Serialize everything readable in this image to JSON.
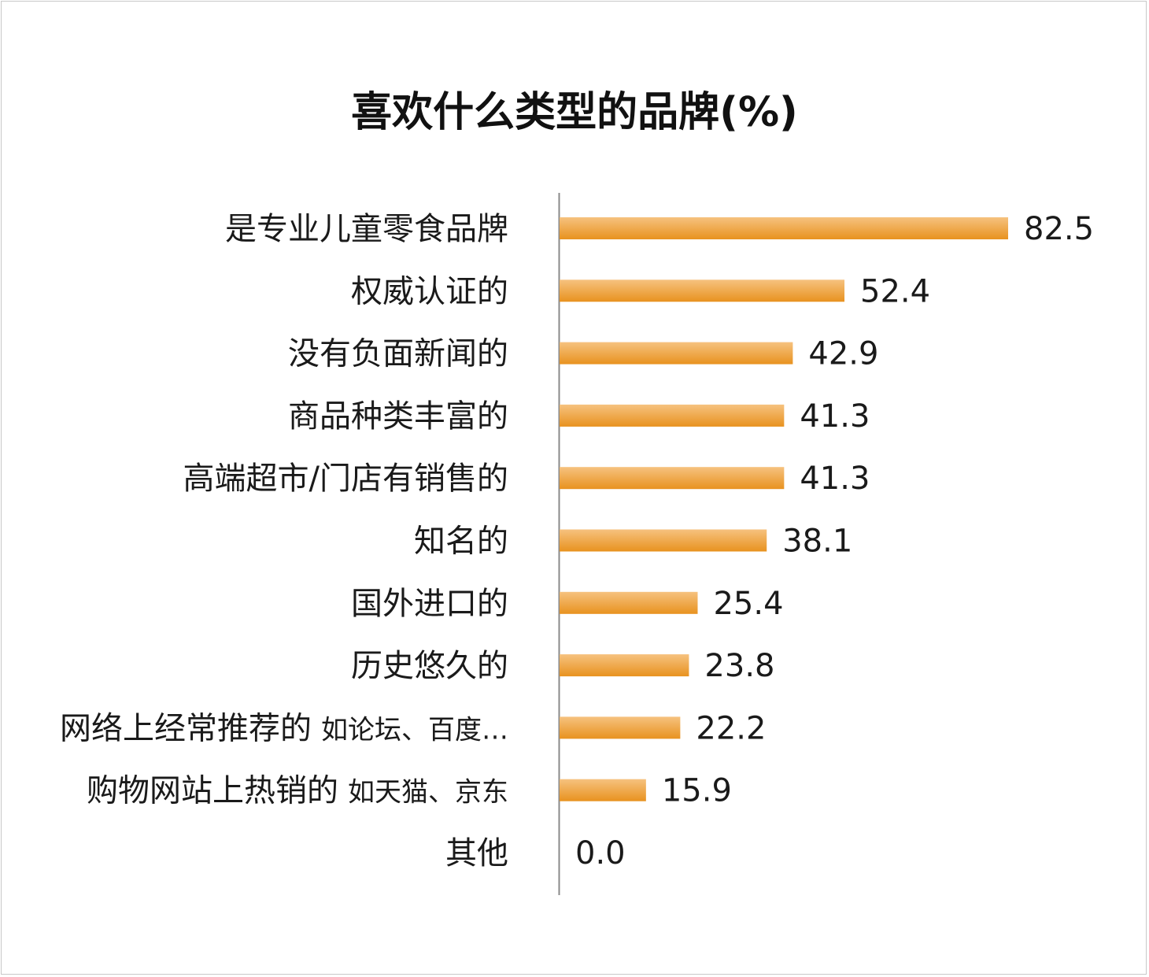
{
  "chart_data": {
    "type": "bar",
    "orientation": "horizontal",
    "title": "喜欢什么类型的品牌(%)",
    "categories": [
      {
        "main": "是专业儿童零食品牌",
        "note": ""
      },
      {
        "main": "权威认证的",
        "note": ""
      },
      {
        "main": "没有负面新闻的",
        "note": ""
      },
      {
        "main": "商品种类丰富的",
        "note": ""
      },
      {
        "main": "高端超市/门店有销售的",
        "note": ""
      },
      {
        "main": "知名的",
        "note": ""
      },
      {
        "main": "国外进口的",
        "note": ""
      },
      {
        "main": "历史悠久的",
        "note": ""
      },
      {
        "main": "网络上经常推荐的",
        "note": "如论坛、百度…"
      },
      {
        "main": "购物网站上热销的",
        "note": "如天猫、京东"
      },
      {
        "main": "其他",
        "note": ""
      }
    ],
    "values": [
      82.5,
      52.4,
      42.9,
      41.3,
      41.3,
      38.1,
      25.4,
      23.8,
      22.2,
      15.9,
      0.0
    ],
    "value_labels": [
      "82.5",
      "52.4",
      "42.9",
      "41.3",
      "41.3",
      "38.1",
      "25.4",
      "23.8",
      "22.2",
      "15.9",
      "0.0"
    ],
    "xlim": [
      0,
      100
    ],
    "grid": false,
    "bar_color_top": "#f6c27f",
    "bar_color_bottom": "#e8921f"
  }
}
